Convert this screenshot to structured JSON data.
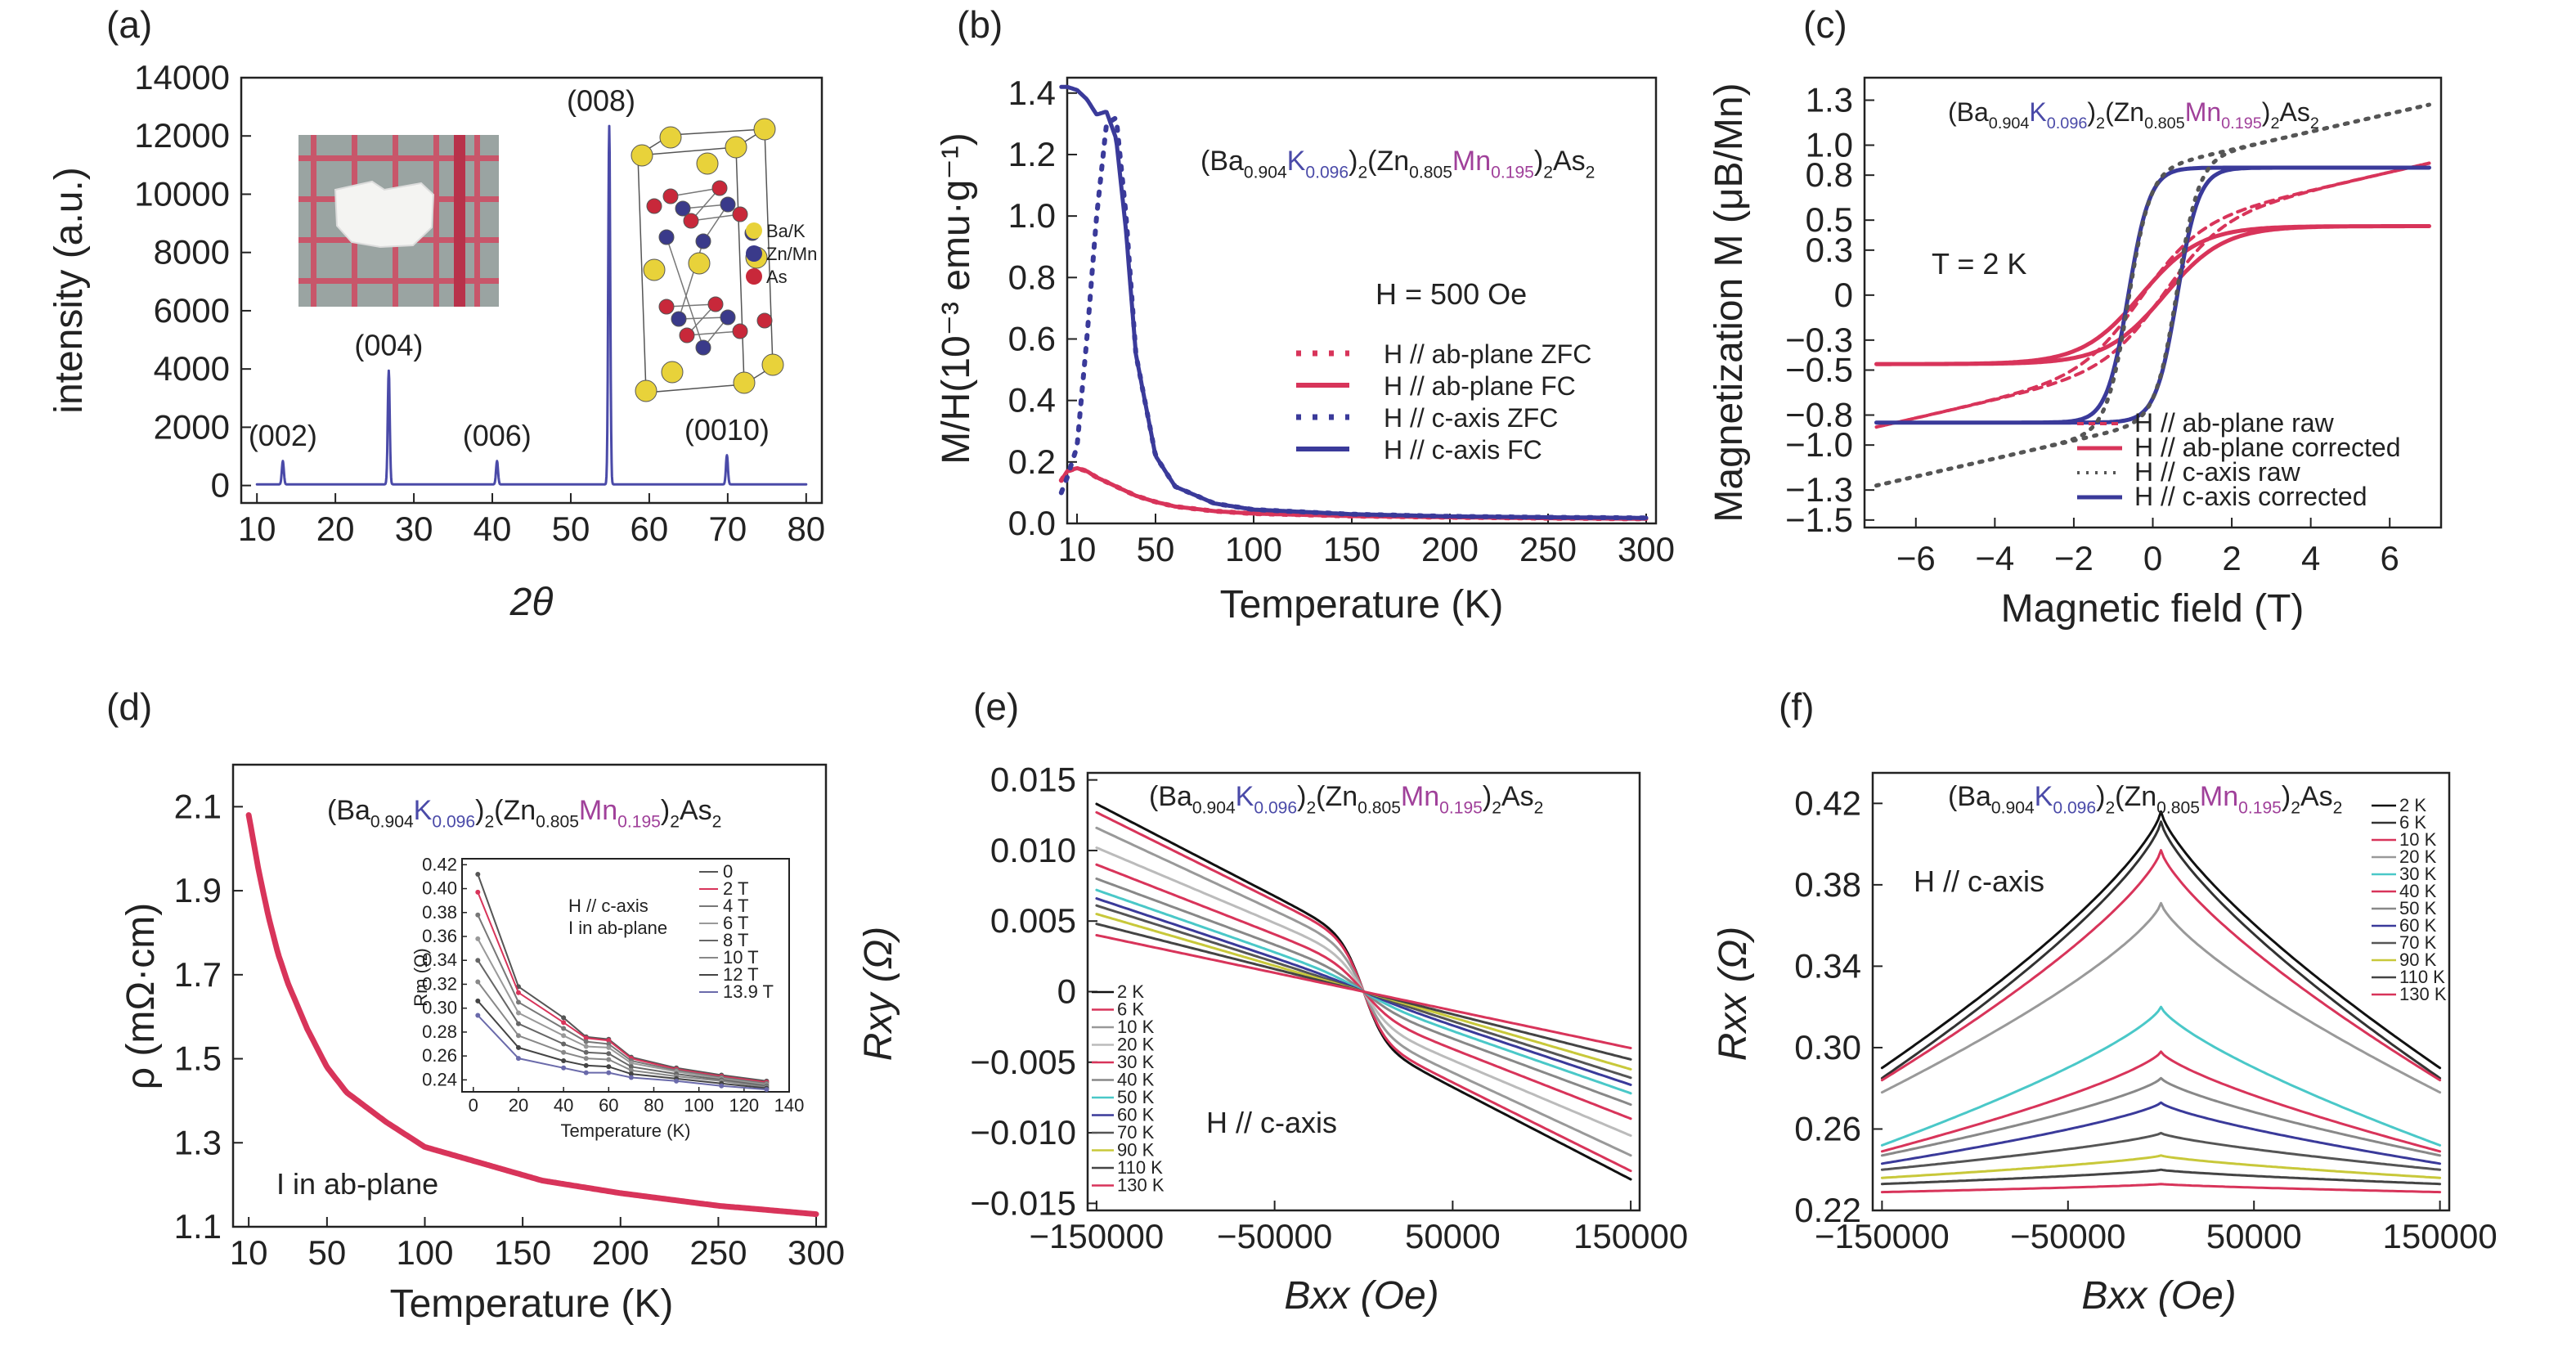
{
  "figure": {
    "panels": [
      "(a)",
      "(b)",
      "(c)",
      "(d)",
      "(e)",
      "(f)"
    ],
    "formula": {
      "p1": "(Ba",
      "s1": "0.904",
      "p2": "K",
      "s2": "0.096",
      "p3": ")",
      "s3": "2",
      "p4": "(Zn",
      "s4": "0.805",
      "p5": "Mn",
      "s5": "0.195",
      "p6": ")",
      "s6": "2",
      "p7": "As",
      "s7": "2"
    }
  },
  "chart_data": [
    {
      "id": "a",
      "type": "line",
      "title": "",
      "xlabel": "2θ",
      "ylabel": "intensity (a.u.)",
      "xlim": [
        8,
        82
      ],
      "ylim": [
        -600,
        14000
      ],
      "xticks": [
        10,
        20,
        30,
        40,
        50,
        60,
        70,
        80
      ],
      "yticks": [
        0,
        2000,
        4000,
        6000,
        8000,
        10000,
        12000,
        14000
      ],
      "peaks": [
        {
          "x": 13.3,
          "y": 800,
          "label": "(002)"
        },
        {
          "x": 26.8,
          "y": 3900,
          "label": "(004)"
        },
        {
          "x": 40.6,
          "y": 800,
          "label": "(006)"
        },
        {
          "x": 54.9,
          "y": 12300,
          "label": "(008)"
        },
        {
          "x": 69.9,
          "y": 1000,
          "label": "(0010)"
        }
      ],
      "series": [
        {
          "color": "#4a4aa8"
        }
      ],
      "inset_legend": [
        "Ba/K",
        "Zn/Mn",
        "As"
      ],
      "inset_colors": [
        "#e8d23a",
        "#3a3a8a",
        "#c8283a"
      ]
    },
    {
      "id": "b",
      "type": "line",
      "title": "",
      "xlabel": "Temperature (K)",
      "ylabel": "M/H(10⁻³ emu·g⁻¹)",
      "xlim": [
        5,
        305
      ],
      "ylim": [
        0,
        1.45
      ],
      "xticks": [
        10,
        50,
        100,
        150,
        200,
        250,
        300
      ],
      "yticks": [
        0,
        0.2,
        0.4,
        0.6,
        0.8,
        1.0,
        1.2,
        1.4
      ],
      "annotation": "H = 500 Oe",
      "series": [
        {
          "name": "H // ab-plane ZFC",
          "color": "#d8345a",
          "dash": true,
          "x": [
            2,
            5,
            10,
            15,
            20,
            30,
            40,
            50,
            60,
            80,
            100,
            150,
            200,
            250,
            300
          ],
          "y": [
            0.14,
            0.17,
            0.18,
            0.17,
            0.15,
            0.12,
            0.09,
            0.07,
            0.055,
            0.04,
            0.032,
            0.024,
            0.02,
            0.017,
            0.015
          ]
        },
        {
          "name": "H // ab-plane FC",
          "color": "#d8345a",
          "dash": false,
          "x": [
            2,
            5,
            10,
            15,
            20,
            30,
            40,
            50,
            60,
            80,
            100,
            150,
            200,
            250,
            300
          ],
          "y": [
            0.14,
            0.17,
            0.18,
            0.17,
            0.15,
            0.12,
            0.09,
            0.07,
            0.055,
            0.04,
            0.032,
            0.024,
            0.02,
            0.017,
            0.015
          ]
        },
        {
          "name": "H // c-axis ZFC",
          "color": "#3a3a9a",
          "dash": true,
          "x": [
            2,
            5,
            10,
            15,
            20,
            25,
            30,
            35,
            40,
            50,
            60,
            80,
            100,
            150,
            200,
            250,
            300
          ],
          "y": [
            0.1,
            0.15,
            0.25,
            0.6,
            1.0,
            1.3,
            1.32,
            1.0,
            0.55,
            0.22,
            0.12,
            0.065,
            0.045,
            0.03,
            0.023,
            0.02,
            0.018
          ]
        },
        {
          "name": "H // c-axis FC",
          "color": "#3a3a9a",
          "dash": false,
          "x": [
            2,
            5,
            10,
            15,
            20,
            25,
            30,
            35,
            40,
            50,
            60,
            80,
            100,
            150,
            200,
            250,
            300
          ],
          "y": [
            1.42,
            1.42,
            1.41,
            1.38,
            1.33,
            1.34,
            1.25,
            0.95,
            0.55,
            0.22,
            0.12,
            0.065,
            0.045,
            0.03,
            0.023,
            0.02,
            0.018
          ]
        }
      ]
    },
    {
      "id": "c",
      "type": "line",
      "title": "",
      "xlabel": "Magnetic field (T)",
      "ylabel": "Magnetization M (μB/Mn)",
      "xlim": [
        -7.3,
        7.3
      ],
      "ylim": [
        -1.55,
        1.45
      ],
      "xticks": [
        -6,
        -4,
        -2,
        0,
        2,
        4,
        6
      ],
      "yticks": [
        -1.5,
        -1.3,
        -1.0,
        -0.8,
        -0.5,
        -0.3,
        0,
        0.3,
        0.5,
        0.8,
        1.0,
        1.3
      ],
      "annotation": "T = 2 K",
      "series": [
        {
          "name": "H // ab-plane raw",
          "color": "#d8345a",
          "dash": true
        },
        {
          "name": "H // ab-plane corrected",
          "color": "#d8345a",
          "dash": false
        },
        {
          "name": "H // c-axis raw",
          "color": "#555555",
          "dash": true
        },
        {
          "name": "H // c-axis corrected",
          "color": "#3a3a9a",
          "dash": false
        }
      ]
    },
    {
      "id": "d",
      "type": "line",
      "title": "",
      "xlabel": "Temperature (K)",
      "ylabel": "ρ (mΩ·cm)",
      "xlim": [
        2,
        305
      ],
      "ylim": [
        1.1,
        2.2
      ],
      "xticks": [
        10,
        50,
        100,
        150,
        200,
        250,
        300
      ],
      "yticks": [
        1.1,
        1.3,
        1.5,
        1.7,
        1.9,
        2.1
      ],
      "annotation": "I in ab-plane",
      "series": [
        {
          "color": "#d8345a",
          "x": [
            10,
            15,
            20,
            25,
            30,
            40,
            50,
            60,
            80,
            100,
            130,
            160,
            200,
            250,
            300
          ],
          "y": [
            2.08,
            1.95,
            1.84,
            1.75,
            1.68,
            1.57,
            1.48,
            1.42,
            1.35,
            1.29,
            1.25,
            1.21,
            1.18,
            1.15,
            1.13
          ]
        }
      ],
      "inset": {
        "xlabel": "Temperature (K)",
        "ylabel": "Rm (Ω)",
        "xlim": [
          -5,
          140
        ],
        "ylim": [
          0.23,
          0.425
        ],
        "xticks": [
          0,
          20,
          40,
          60,
          80,
          100,
          120,
          140
        ],
        "yticks": [
          0.24,
          0.26,
          0.28,
          0.3,
          0.32,
          0.34,
          0.36,
          0.38,
          0.4,
          0.42
        ],
        "note1": "H // c-axis",
        "note2": "I in ab-plane",
        "x": [
          2,
          20,
          40,
          50,
          60,
          70,
          90,
          110,
          130
        ],
        "series": [
          {
            "name": "0",
            "color": "#555555",
            "y": [
              0.412,
              0.318,
              0.292,
              0.276,
              0.274,
              0.259,
              0.25,
              0.244,
              0.239
            ]
          },
          {
            "name": "2 T",
            "color": "#d8345a",
            "y": [
              0.397,
              0.313,
              0.288,
              0.275,
              0.273,
              0.258,
              0.249,
              0.243,
              0.238
            ]
          },
          {
            "name": "4 T",
            "color": "#777777",
            "y": [
              0.378,
              0.305,
              0.283,
              0.272,
              0.27,
              0.256,
              0.248,
              0.242,
              0.237
            ]
          },
          {
            "name": "6 T",
            "color": "#999999",
            "y": [
              0.358,
              0.296,
              0.277,
              0.268,
              0.267,
              0.254,
              0.247,
              0.241,
              0.236
            ]
          },
          {
            "name": "8 T",
            "color": "#666666",
            "y": [
              0.34,
              0.287,
              0.27,
              0.263,
              0.262,
              0.251,
              0.245,
              0.24,
              0.235
            ]
          },
          {
            "name": "10 T",
            "color": "#888888",
            "y": [
              0.322,
              0.277,
              0.263,
              0.258,
              0.257,
              0.248,
              0.243,
              0.239,
              0.234
            ]
          },
          {
            "name": "12 T",
            "color": "#444444",
            "y": [
              0.306,
              0.267,
              0.256,
              0.252,
              0.251,
              0.245,
              0.241,
              0.237,
              0.233
            ]
          },
          {
            "name": "13.9 T",
            "color": "#6a6aaa",
            "y": [
              0.294,
              0.258,
              0.25,
              0.246,
              0.246,
              0.242,
              0.239,
              0.235,
              0.232
            ]
          }
        ]
      }
    },
    {
      "id": "e",
      "type": "line",
      "title": "",
      "xlabel": "Bxx (Oe)",
      "ylabel": "Rxy (Ω)",
      "xlim": [
        -155000,
        155000
      ],
      "ylim": [
        -0.0155,
        0.0155
      ],
      "xticks": [
        -150000,
        -50000,
        50000,
        150000
      ],
      "yticks": [
        -0.015,
        -0.01,
        -0.005,
        0,
        0.005,
        0.01,
        0.015
      ],
      "annotation": "H // c-axis",
      "series": [
        {
          "name": "2 K",
          "color": "#111111",
          "sat": 0.0035,
          "slope": 0.0098,
          "k": 12
        },
        {
          "name": "6 K",
          "color": "#d8345a",
          "sat": 0.0033,
          "slope": 0.0094,
          "k": 12
        },
        {
          "name": "10 K",
          "color": "#999999",
          "sat": 0.0028,
          "slope": 0.0088,
          "k": 11
        },
        {
          "name": "20 K",
          "color": "#bbbbbb",
          "sat": 0.0022,
          "slope": 0.008,
          "k": 10
        },
        {
          "name": "30 K",
          "color": "#d8345a",
          "sat": 0.0016,
          "slope": 0.0074,
          "k": 9
        },
        {
          "name": "40 K",
          "color": "#888888",
          "sat": 0.001,
          "slope": 0.007,
          "k": 8
        },
        {
          "name": "50 K",
          "color": "#4ac8c8",
          "sat": 0.0006,
          "slope": 0.0066,
          "k": 7
        },
        {
          "name": "60 K",
          "color": "#3a3a9a",
          "sat": 0.0003,
          "slope": 0.0063,
          "k": 6
        },
        {
          "name": "70 K",
          "color": "#555555",
          "sat": 0.0001,
          "slope": 0.006,
          "k": 5
        },
        {
          "name": "90 K",
          "color": "#c8c83a",
          "sat": 0.0,
          "slope": 0.0055,
          "k": 4
        },
        {
          "name": "110 K",
          "color": "#444444",
          "sat": 0.0,
          "slope": 0.0048,
          "k": 3
        },
        {
          "name": "130 K",
          "color": "#d8345a",
          "sat": 0.0,
          "slope": 0.004,
          "k": 2
        }
      ]
    },
    {
      "id": "f",
      "type": "line",
      "title": "",
      "xlabel": "Bxx (Oe)",
      "ylabel": "Rxx (Ω)",
      "xlim": [
        -155000,
        155000
      ],
      "ylim": [
        0.22,
        0.435
      ],
      "xticks": [
        -150000,
        -50000,
        50000,
        150000
      ],
      "yticks": [
        0.22,
        0.26,
        0.3,
        0.34,
        0.38,
        0.42
      ],
      "annotation": "H // c-axis",
      "series": [
        {
          "name": "2 K",
          "color": "#111111",
          "peak": 0.416,
          "edge": 0.29
        },
        {
          "name": "6 K",
          "color": "#333333",
          "peak": 0.411,
          "edge": 0.285
        },
        {
          "name": "10 K",
          "color": "#d8345a",
          "peak": 0.397,
          "edge": 0.284
        },
        {
          "name": "20 K",
          "color": "#999999",
          "peak": 0.371,
          "edge": 0.278
        },
        {
          "name": "30 K",
          "color": "#4ac8c8",
          "peak": 0.32,
          "edge": 0.252
        },
        {
          "name": "40 K",
          "color": "#d8345a",
          "peak": 0.298,
          "edge": 0.249
        },
        {
          "name": "50 K",
          "color": "#888888",
          "peak": 0.285,
          "edge": 0.247
        },
        {
          "name": "60 K",
          "color": "#3a3a9a",
          "peak": 0.273,
          "edge": 0.243
        },
        {
          "name": "70 K",
          "color": "#555555",
          "peak": 0.258,
          "edge": 0.24
        },
        {
          "name": "90 K",
          "color": "#c8c83a",
          "peak": 0.247,
          "edge": 0.236
        },
        {
          "name": "110 K",
          "color": "#444444",
          "peak": 0.24,
          "edge": 0.233
        },
        {
          "name": "130 K",
          "color": "#d8345a",
          "peak": 0.233,
          "edge": 0.229
        }
      ]
    }
  ]
}
